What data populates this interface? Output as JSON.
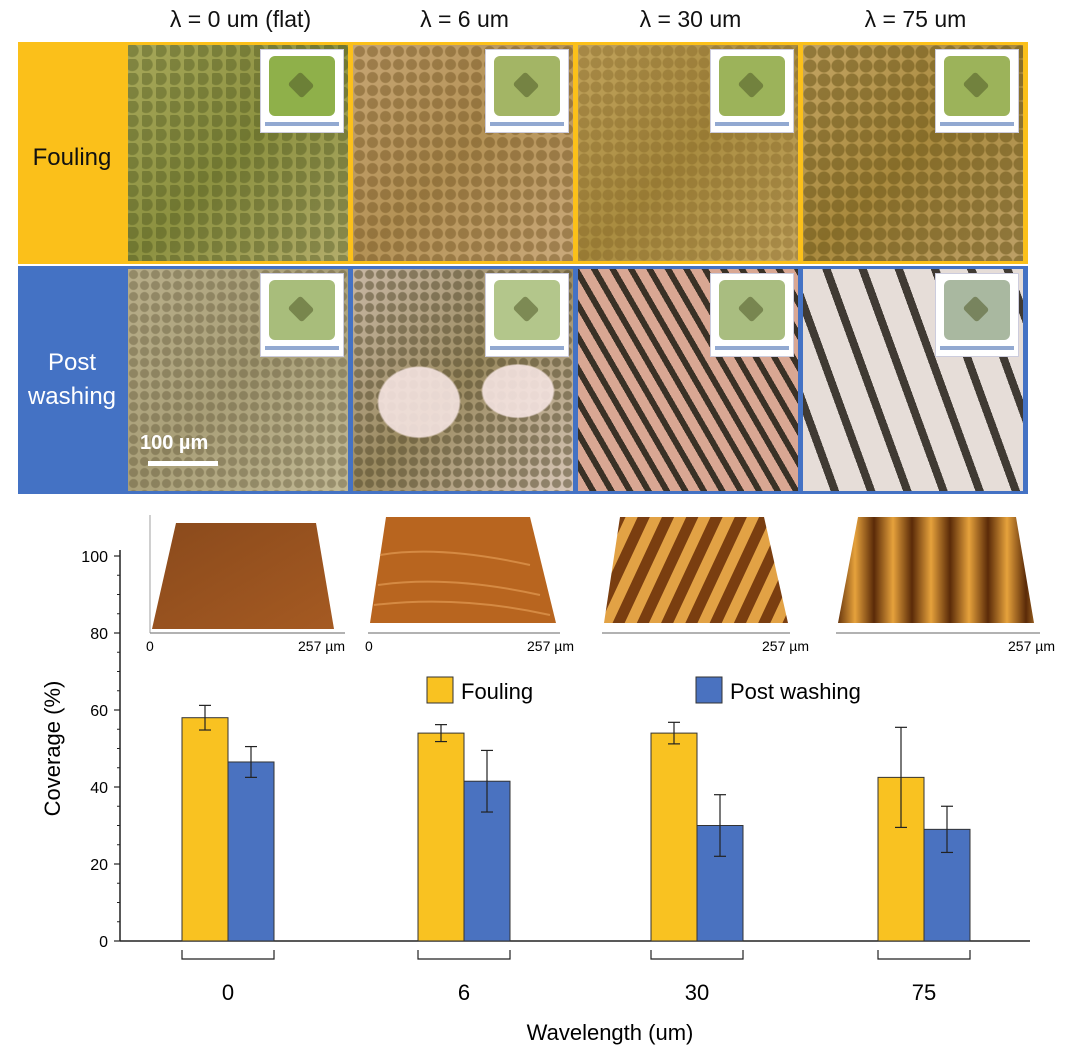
{
  "figure": {
    "columns": [
      {
        "label": "λ = 0 um (flat)"
      },
      {
        "label": "λ = 6 um"
      },
      {
        "label": "λ = 30 um"
      },
      {
        "label": "λ = 75 um"
      }
    ],
    "rows": [
      {
        "label_lines": [
          "Fouling"
        ],
        "color": "#FBC01A"
      },
      {
        "label_lines": [
          "Post",
          "washing"
        ],
        "color": "#4472C4"
      }
    ],
    "scale_bar": "100 µm",
    "afm_insets": [
      {
        "x_start": "0",
        "x_end": "257 µm"
      },
      {
        "x_start": "0",
        "x_end": "257 µm"
      },
      {
        "x_start": "",
        "x_end": "257 µm"
      },
      {
        "x_start": "",
        "x_end": "257 µm"
      }
    ]
  },
  "chart_data": {
    "type": "bar",
    "title": "",
    "xlabel": "Wavelength (um)",
    "ylabel": "Coverage (%)",
    "ylim": [
      0,
      100
    ],
    "yticks": [
      "0",
      "20",
      "40",
      "60",
      "80",
      "100"
    ],
    "categories": [
      "0",
      "6",
      "30",
      "75"
    ],
    "series": [
      {
        "name": "Fouling",
        "color": "#F9C221",
        "values": [
          58,
          54,
          54,
          42.5
        ],
        "errors": [
          3.2,
          2.2,
          2.8,
          13
        ]
      },
      {
        "name": "Post washing",
        "color": "#4A72C0",
        "values": [
          46.5,
          41.5,
          30,
          29
        ],
        "errors": [
          4,
          8,
          8,
          6
        ]
      }
    ]
  }
}
